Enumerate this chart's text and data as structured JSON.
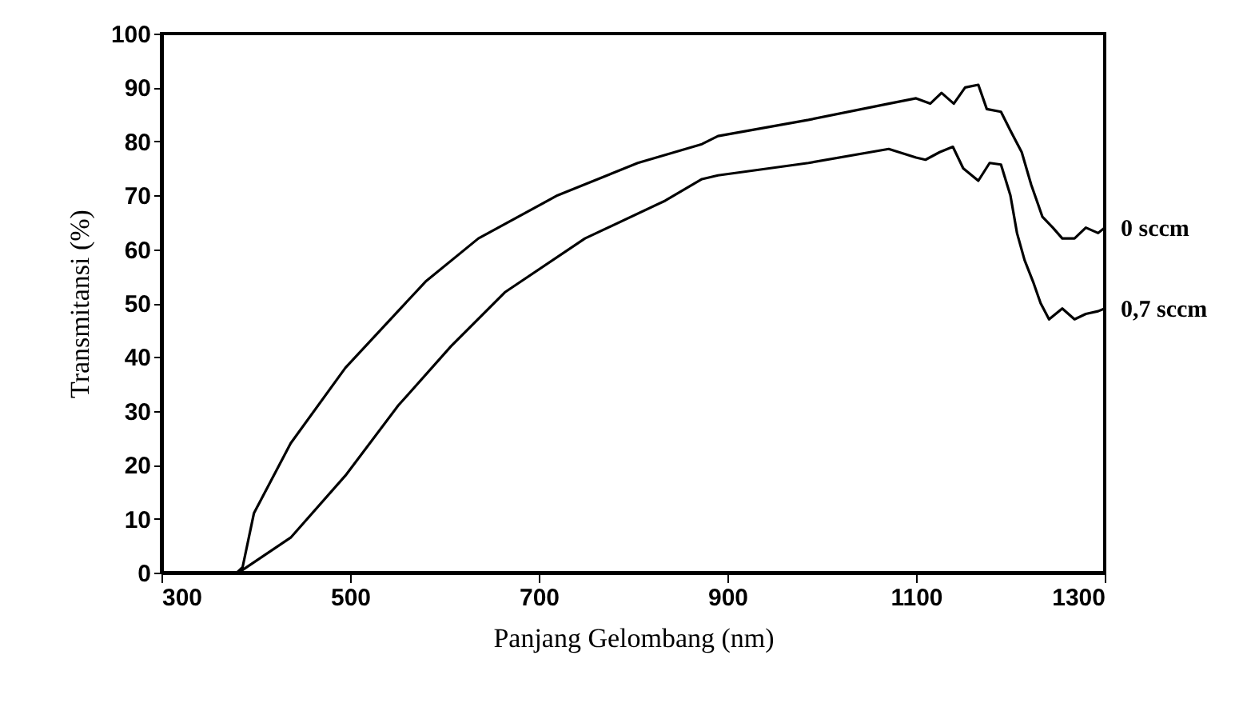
{
  "chart_data": {
    "type": "line",
    "xlabel": "Panjang Gelombang (nm)",
    "ylabel": "Transmitansi (%)",
    "xlim": [
      300,
      1300
    ],
    "xticks": [
      300,
      500,
      700,
      900,
      1100,
      1300
    ],
    "ylim": [
      0,
      100
    ],
    "yticks": [
      0,
      10,
      20,
      30,
      40,
      50,
      60,
      70,
      80,
      90,
      100
    ],
    "grid": false,
    "legend": false,
    "marker": "none",
    "line_style": "solid",
    "series": [
      {
        "name": "0 sccm",
        "color": "#000000",
        "x": [
          300,
          340,
          380,
          386,
          398,
          437,
          495,
          580,
          636,
          720,
          805,
          873,
          890,
          986,
          1071,
          1100,
          1115,
          1127,
          1140,
          1152,
          1166,
          1175,
          1190,
          1200,
          1212,
          1222,
          1234,
          1245,
          1255,
          1268,
          1280,
          1293,
          1300
        ],
        "values": [
          0,
          0,
          0,
          1,
          11,
          24,
          38,
          54,
          62,
          70,
          76,
          79.5,
          81,
          84,
          87,
          88,
          87,
          89,
          87,
          90,
          90.5,
          86,
          85.5,
          82,
          78,
          72,
          66,
          64,
          62,
          62,
          64,
          63,
          64
        ]
      },
      {
        "name": "0,7 sccm",
        "color": "#000000",
        "x": [
          300,
          340,
          380,
          386,
          437,
          495,
          551,
          607,
          664,
          749,
          834,
          873,
          890,
          986,
          1071,
          1100,
          1110,
          1125,
          1139,
          1150,
          1166,
          1178,
          1190,
          1200,
          1207,
          1215,
          1224,
          1232,
          1241,
          1255,
          1268,
          1280,
          1293,
          1300
        ],
        "values": [
          0,
          0,
          0,
          0.5,
          6.5,
          18,
          31,
          42,
          52,
          62,
          69,
          73,
          73.7,
          76,
          78.6,
          77,
          76.6,
          78,
          79,
          75,
          72.7,
          76,
          75.7,
          70,
          63,
          58,
          54,
          50,
          47,
          49,
          47,
          48,
          48.5,
          49
        ]
      }
    ]
  }
}
